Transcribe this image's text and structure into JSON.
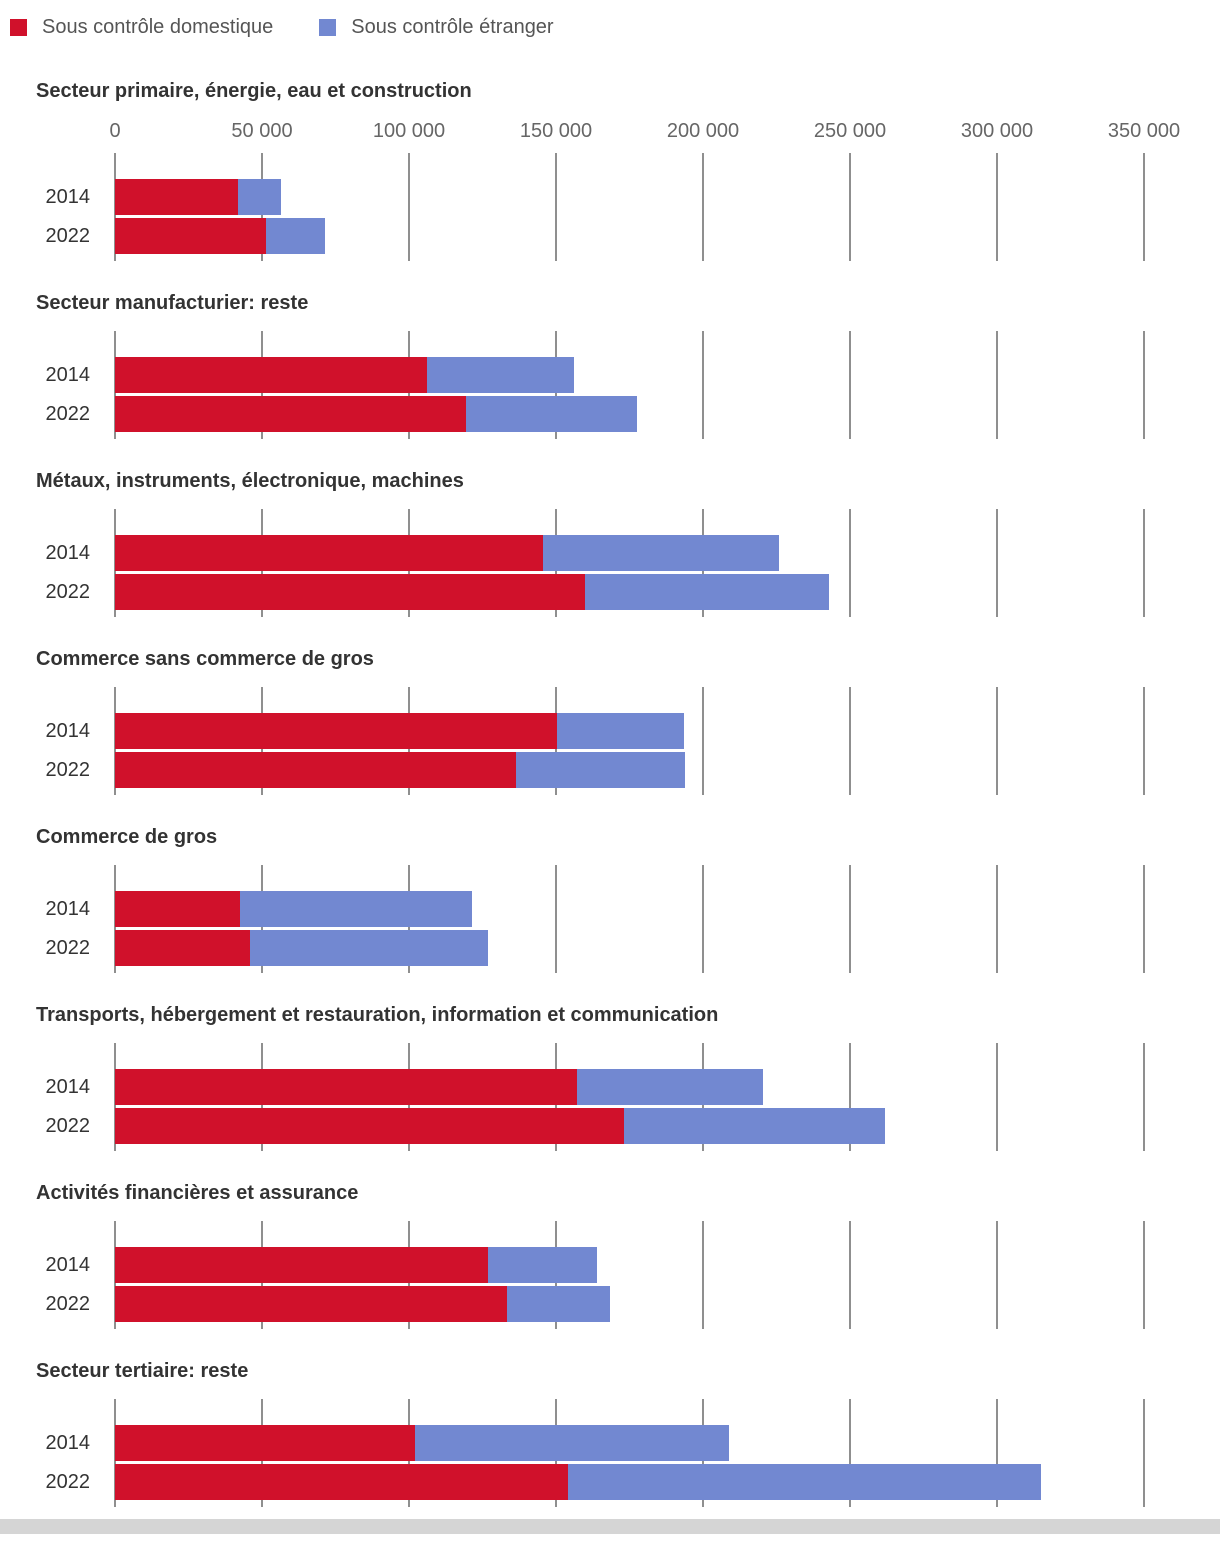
{
  "legend": {
    "items": [
      {
        "label": "Sous contrôle domestique",
        "color": "#d0112b"
      },
      {
        "label": "Sous contrôle étranger",
        "color": "#7288d1"
      }
    ]
  },
  "colors": {
    "domestique": "#d0112b",
    "etranger": "#7288d1",
    "gridline": "#8f8f8f",
    "title_text": "#333333",
    "axis_text": "#666666"
  },
  "chart_data": {
    "type": "bar",
    "orientation": "horizontal",
    "stacked": true,
    "legend_position": "top",
    "grid": true,
    "axis": {
      "min": 0,
      "max": 350000,
      "step": 50000,
      "tick_labels": [
        "0",
        "50 000",
        "100 000",
        "150 000",
        "200 000",
        "250 000",
        "300 000",
        "350 000"
      ]
    },
    "series": [
      {
        "key": "domestique",
        "name": "Sous contrôle domestique",
        "color": "#d0112b"
      },
      {
        "key": "etranger",
        "name": "Sous contrôle étranger",
        "color": "#7288d1"
      }
    ],
    "sections": [
      {
        "title": "Secteur primaire, énergie, eau et construction",
        "show_axis_labels": true,
        "rows": [
          {
            "year": "2014",
            "values": [
              42000,
              14500
            ]
          },
          {
            "year": "2022",
            "values": [
              51500,
              20000
            ]
          }
        ]
      },
      {
        "title": "Secteur manufacturier: reste",
        "show_axis_labels": false,
        "rows": [
          {
            "year": "2014",
            "values": [
              106000,
              50000
            ]
          },
          {
            "year": "2022",
            "values": [
              119500,
              58000
            ]
          }
        ]
      },
      {
        "title": "Métaux, instruments, électronique, machines",
        "show_axis_labels": false,
        "rows": [
          {
            "year": "2014",
            "values": [
              145500,
              80500
            ]
          },
          {
            "year": "2022",
            "values": [
              160000,
              83000
            ]
          }
        ]
      },
      {
        "title": "Commerce sans commerce de gros",
        "show_axis_labels": false,
        "rows": [
          {
            "year": "2014",
            "values": [
              150500,
              43000
            ]
          },
          {
            "year": "2022",
            "values": [
              136500,
              57500
            ]
          }
        ]
      },
      {
        "title": "Commerce de gros",
        "show_axis_labels": false,
        "rows": [
          {
            "year": "2014",
            "values": [
              42500,
              79000
            ]
          },
          {
            "year": "2022",
            "values": [
              46000,
              81000
            ]
          }
        ]
      },
      {
        "title": "Transports, hébergement et restauration, information et communication",
        "show_axis_labels": false,
        "rows": [
          {
            "year": "2014",
            "values": [
              157000,
              63500
            ]
          },
          {
            "year": "2022",
            "values": [
              173000,
              89000
            ]
          }
        ]
      },
      {
        "title": "Activités financières et assurance",
        "show_axis_labels": false,
        "rows": [
          {
            "year": "2014",
            "values": [
              127000,
              37000
            ]
          },
          {
            "year": "2022",
            "values": [
              133500,
              35000
            ]
          }
        ]
      },
      {
        "title": "Secteur tertiaire: reste",
        "show_axis_labels": false,
        "rows": [
          {
            "year": "2014",
            "values": [
              102000,
              107000
            ]
          },
          {
            "year": "2022",
            "values": [
              154000,
              161000
            ]
          }
        ]
      }
    ]
  }
}
